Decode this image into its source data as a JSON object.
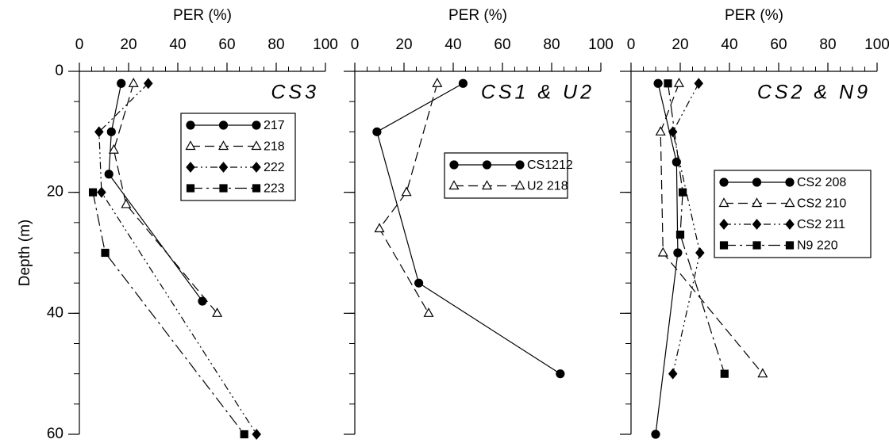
{
  "chart_data": [
    {
      "type": "line",
      "title": "CS3",
      "xlabel": "PER (%)",
      "ylabel": "Depth (m)",
      "xlim": [
        0,
        100
      ],
      "xticks": [
        0,
        20,
        40,
        60,
        80,
        100
      ],
      "ylim": [
        0,
        60
      ],
      "yticks": [
        0,
        20,
        40,
        60
      ],
      "y_inverted": true,
      "series": [
        {
          "name": "217",
          "color": "#000000",
          "marker": "circle",
          "dash": "solid",
          "x": [
            17,
            13,
            12,
            50
          ],
          "values": [
            2,
            10,
            17,
            38
          ]
        },
        {
          "name": "218",
          "color": "#000000",
          "marker": "triangle",
          "dash": "dashed",
          "x": [
            22,
            14,
            19,
            56
          ],
          "values": [
            2,
            13,
            22,
            40
          ]
        },
        {
          "name": "222",
          "color": "#000000",
          "marker": "diamond",
          "dash": "dashdotdot",
          "x": [
            28,
            8,
            9,
            72
          ],
          "values": [
            2,
            10,
            20,
            60
          ]
        },
        {
          "name": "223",
          "color": "#000000",
          "marker": "square",
          "dash": "dashdot",
          "x": [
            5.5,
            10.5,
            67
          ],
          "values": [
            20,
            30,
            60
          ]
        }
      ]
    },
    {
      "type": "line",
      "title": "CS1 & U2",
      "xlabel": "PER (%)",
      "xlim": [
        0,
        100
      ],
      "xticks": [
        0,
        20,
        40,
        60,
        80,
        100
      ],
      "ylim": [
        0,
        60
      ],
      "y_inverted": true,
      "series": [
        {
          "name": "CS1212",
          "color": "#000000",
          "marker": "circle",
          "dash": "solid",
          "x": [
            44,
            9,
            26,
            83.5
          ],
          "values": [
            2,
            10,
            35,
            50
          ]
        },
        {
          "name": "U2 218",
          "color": "#000000",
          "marker": "triangle",
          "dash": "dashed",
          "x": [
            33.5,
            21,
            10,
            30
          ],
          "values": [
            2,
            20,
            26,
            40
          ]
        }
      ]
    },
    {
      "type": "line",
      "title": "CS2 & N9",
      "xlabel": "PER (%)",
      "xlim": [
        0,
        100
      ],
      "xticks": [
        0,
        20,
        40,
        60,
        80,
        100
      ],
      "ylim": [
        0,
        60
      ],
      "y_inverted": true,
      "series": [
        {
          "name": "CS2 208",
          "color": "#000000",
          "marker": "circle",
          "dash": "solid",
          "x": [
            11,
            18.5,
            19,
            10
          ],
          "values": [
            2,
            15,
            30,
            60
          ]
        },
        {
          "name": "CS2 210",
          "color": "#000000",
          "marker": "triangle",
          "dash": "dashed",
          "x": [
            19.5,
            12,
            13,
            53.5
          ],
          "values": [
            2,
            10,
            30,
            50
          ]
        },
        {
          "name": "CS2 211",
          "color": "#000000",
          "marker": "diamond",
          "dash": "dashdotdot",
          "x": [
            27.5,
            17,
            28,
            17
          ],
          "values": [
            2,
            10,
            30,
            50
          ]
        },
        {
          "name": "N9 220",
          "color": "#000000",
          "marker": "square",
          "dash": "dashdot",
          "x": [
            15,
            21,
            20,
            38
          ],
          "values": [
            2,
            20,
            27,
            50
          ]
        }
      ]
    }
  ]
}
